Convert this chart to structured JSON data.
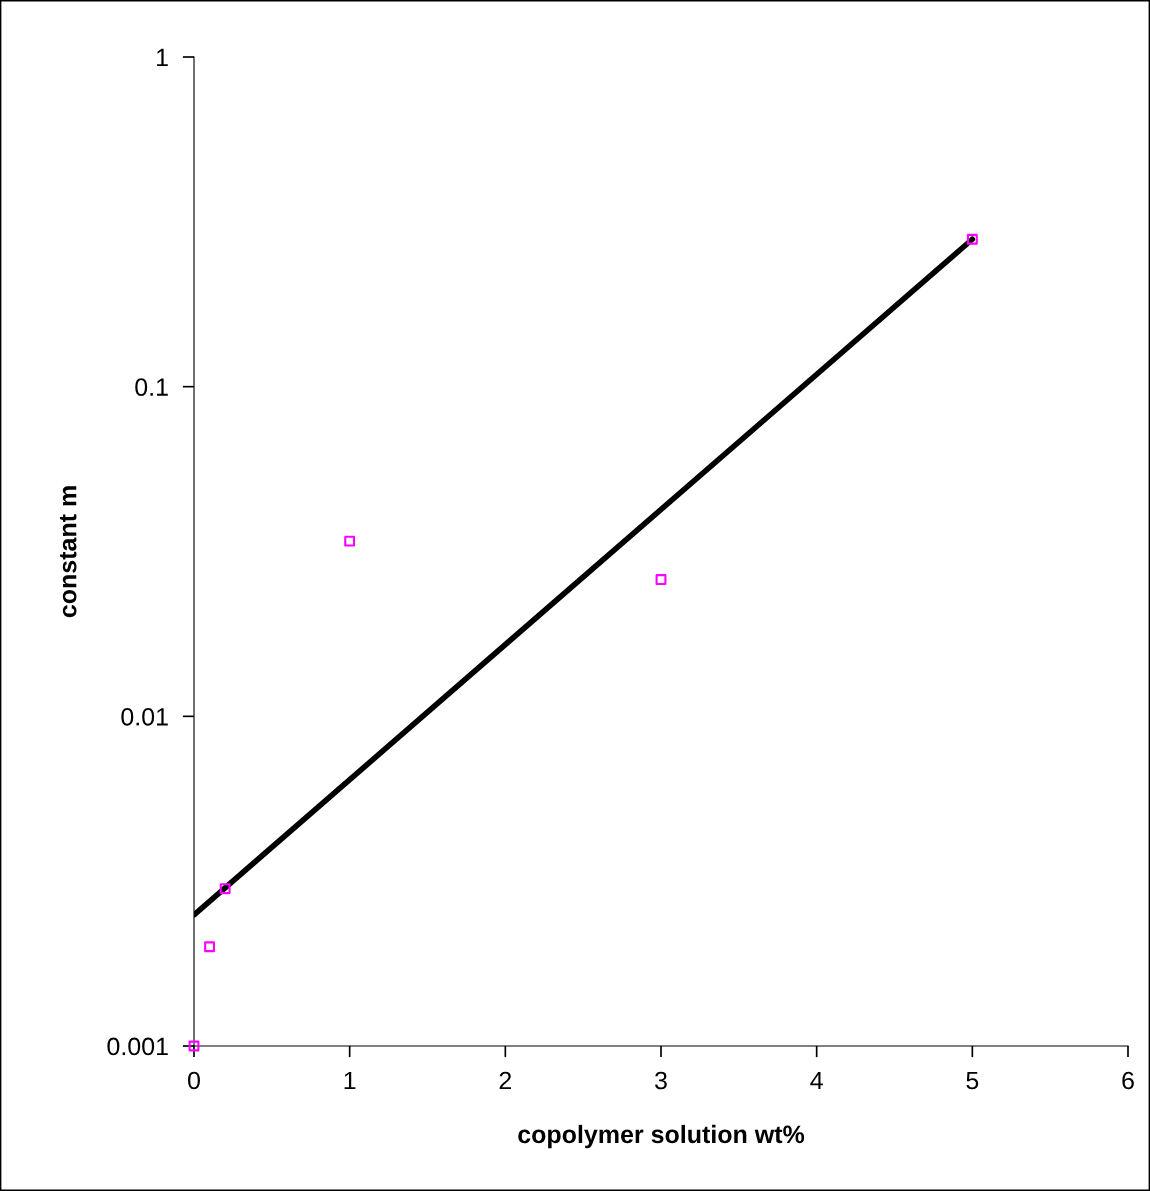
{
  "chart_data": {
    "type": "scatter",
    "xlabel": "copolymer solution wt%",
    "ylabel": "constant m",
    "log": "y",
    "xlim": [
      0,
      6
    ],
    "xticks": [
      0,
      1,
      2,
      3,
      4,
      5,
      6
    ],
    "ylim": [
      0.001,
      1
    ],
    "yticks": [
      0.001,
      0.01,
      0.1,
      1
    ],
    "grid": false,
    "legend": false,
    "marker": "square",
    "series": [
      {
        "color": "#ff00ff",
        "x": [
          0,
          0.1,
          0.2,
          1,
          3,
          5
        ],
        "values": [
          0.001,
          0.002,
          0.003,
          0.034,
          0.026,
          0.28
        ]
      },
      {
        "type": "line",
        "color": "#000000",
        "marker": "none",
        "line_style": "solid",
        "x": [
          0,
          5
        ],
        "values": [
          0.0025,
          0.28
        ]
      }
    ]
  }
}
